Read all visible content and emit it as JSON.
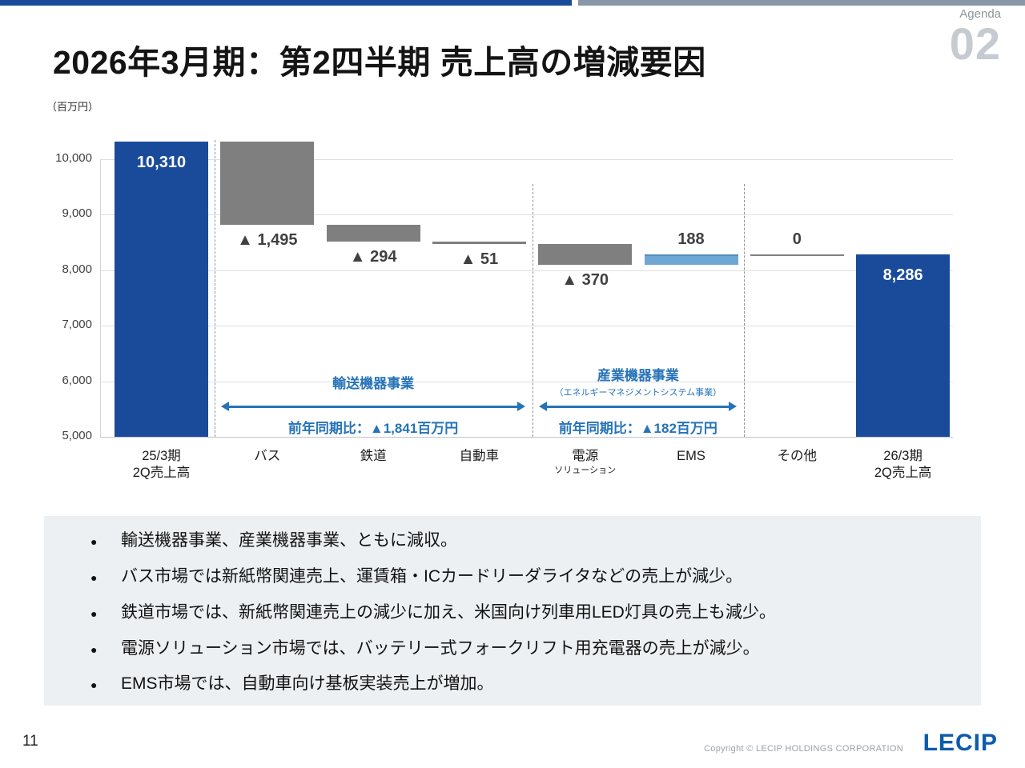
{
  "slide": {
    "agenda_label": "Agenda",
    "agenda_number": "02",
    "title": "2026年3月期：第2四半期 売上高の増減要因",
    "unit_label": "（百万円）",
    "page_number": "11",
    "copyright": "Copyright © LECIP HOLDINGS CORPORATION",
    "logo": "LECIP"
  },
  "chart_data": {
    "type": "bar",
    "subtype": "waterfall",
    "unit": "百万円",
    "ylim": [
      5000,
      10000
    ],
    "ytick_step": 1000,
    "yticks": [
      "10,000",
      "9,000",
      "8,000",
      "7,000",
      "6,000",
      "5,000"
    ],
    "grid": true,
    "columns": [
      {
        "label": "25/3期\n2Q売上高",
        "kind": "total",
        "value": 10310,
        "display": "10,310",
        "color": "#1a4b9b"
      },
      {
        "label": "バス",
        "kind": "delta",
        "value": -1495,
        "display": "▲ 1,495",
        "color": "#7f7f7f"
      },
      {
        "label": "鉄道",
        "kind": "delta",
        "value": -294,
        "display": "▲ 294",
        "color": "#7f7f7f"
      },
      {
        "label": "自動車",
        "kind": "delta",
        "value": -51,
        "display": "▲ 51",
        "color": "#7f7f7f"
      },
      {
        "label": "電源\nソリューション",
        "label_small_line2": true,
        "kind": "delta",
        "value": -370,
        "display": "▲ 370",
        "color": "#7f7f7f"
      },
      {
        "label": "EMS",
        "kind": "delta",
        "value": 188,
        "display": "188",
        "color": "#6fa7d4"
      },
      {
        "label": "その他",
        "kind": "delta",
        "value": 0,
        "display": "0",
        "color": "#808080"
      },
      {
        "label": "26/3期\n2Q売上高",
        "kind": "total",
        "value": 8286,
        "display": "8,286",
        "color": "#1a4b9b"
      }
    ],
    "separators_after": [
      0,
      3,
      5
    ],
    "groups": [
      {
        "name": "輸送機器事業",
        "subname": "",
        "note": "前年同期比：▲1,841百万円",
        "from_col": 1,
        "to_col": 3
      },
      {
        "name": "産業機器事業",
        "subname": "（エネルギーマネジメントシステム事業）",
        "note": "前年同期比：▲182百万円",
        "from_col": 4,
        "to_col": 5
      }
    ]
  },
  "notes": {
    "items": [
      "輸送機器事業、産業機器事業、ともに減収。",
      "バス市場では新紙幣関連売上、運賃箱・ICカードリーダライタなどの売上が減少。",
      "鉄道市場では、新紙幣関連売上の減少に加え、米国向け列車用LED灯具の売上も減少。",
      "電源ソリューション市場では、バッテリー式フォークリフト用充電器の売上が減少。",
      "EMS市場では、自動車向け基板実装売上が増加。"
    ]
  },
  "colors": {
    "primary_blue": "#1a4b9b",
    "bar_gray": "#7f7f7f",
    "bar_lightblue": "#6fa7d4",
    "annotation_blue": "#2673b8",
    "accent_bar_right": "#8a97a6",
    "notes_bg": "#edf0f3",
    "logo_blue": "#0d5bad"
  }
}
